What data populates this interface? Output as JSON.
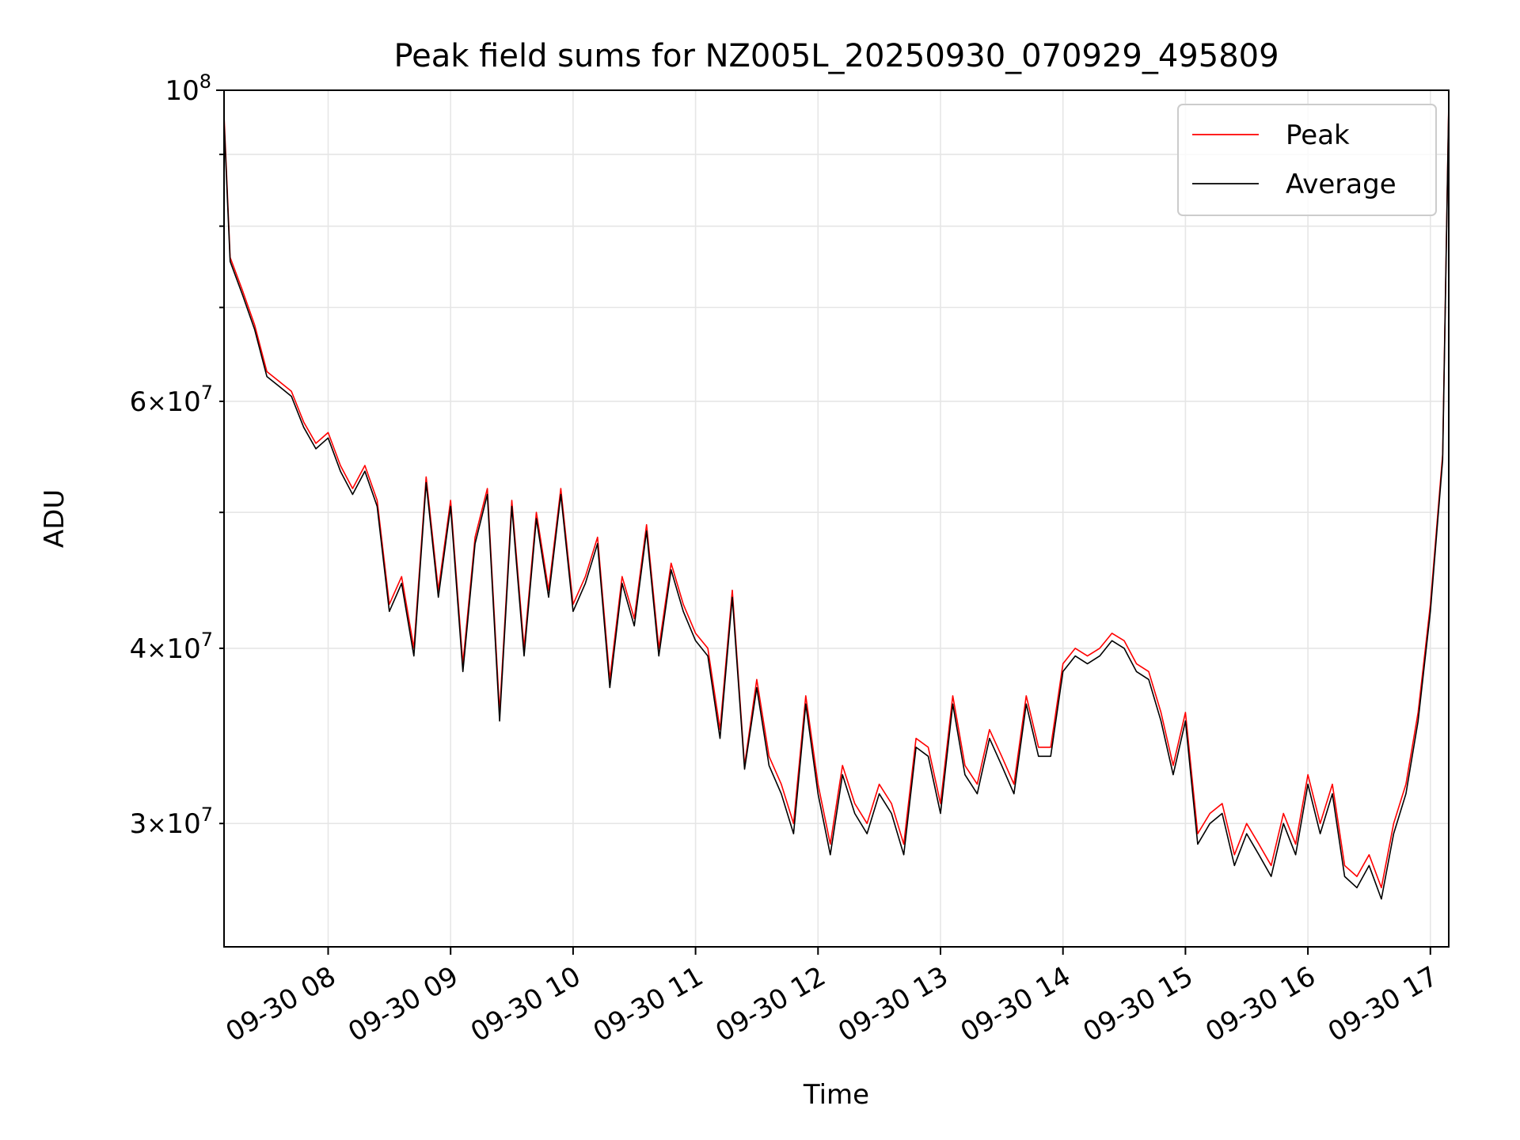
{
  "chart_data": {
    "type": "line",
    "title": "Peak field sums for NZ005L_20250930_070929_495809",
    "xlabel": "Time",
    "ylabel": "ADU",
    "y_scale": "log",
    "xlim_hours": [
      7.15,
      17.15
    ],
    "ylim": [
      24500000,
      100000000
    ],
    "x_ticks": [
      {
        "value": 8,
        "label": "09-30 08"
      },
      {
        "value": 9,
        "label": "09-30 09"
      },
      {
        "value": 10,
        "label": "09-30 10"
      },
      {
        "value": 11,
        "label": "09-30 11"
      },
      {
        "value": 12,
        "label": "09-30 12"
      },
      {
        "value": 13,
        "label": "09-30 13"
      },
      {
        "value": 14,
        "label": "09-30 14"
      },
      {
        "value": 15,
        "label": "09-30 15"
      },
      {
        "value": 16,
        "label": "09-30 16"
      },
      {
        "value": 17,
        "label": "09-30 17"
      }
    ],
    "y_ticks_major": [
      {
        "value": 100000000,
        "base": "10",
        "exp": "8"
      }
    ],
    "y_ticks_minor_labeled": [
      {
        "value": 60000000,
        "mantissa": "6",
        "times": "×",
        "base": "10",
        "exp": "7"
      },
      {
        "value": 40000000,
        "mantissa": "4",
        "times": "×",
        "base": "10",
        "exp": "7"
      },
      {
        "value": 30000000,
        "mantissa": "3",
        "times": "×",
        "base": "10",
        "exp": "7"
      }
    ],
    "y_ticks_minor_unlabeled": [
      50000000,
      70000000,
      80000000,
      90000000
    ],
    "grid": true,
    "legend_position": "top-right",
    "series": [
      {
        "name": "Peak",
        "color": "#ff0000",
        "x_hours": [
          7.15,
          7.2,
          7.3,
          7.4,
          7.5,
          7.6,
          7.7,
          7.8,
          7.9,
          8.0,
          8.1,
          8.2,
          8.3,
          8.4,
          8.5,
          8.6,
          8.7,
          8.8,
          8.9,
          9.0,
          9.1,
          9.2,
          9.3,
          9.4,
          9.5,
          9.6,
          9.7,
          9.8,
          9.9,
          10.0,
          10.1,
          10.2,
          10.3,
          10.4,
          10.5,
          10.6,
          10.7,
          10.8,
          10.9,
          11.0,
          11.1,
          11.2,
          11.3,
          11.4,
          11.5,
          11.6,
          11.7,
          11.8,
          11.9,
          12.0,
          12.1,
          12.2,
          12.3,
          12.4,
          12.5,
          12.6,
          12.7,
          12.8,
          12.9,
          13.0,
          13.1,
          13.2,
          13.3,
          13.4,
          13.5,
          13.6,
          13.7,
          13.8,
          13.9,
          14.0,
          14.1,
          14.2,
          14.3,
          14.4,
          14.5,
          14.6,
          14.7,
          14.8,
          14.9,
          15.0,
          15.1,
          15.2,
          15.3,
          15.4,
          15.5,
          15.6,
          15.7,
          15.8,
          15.9,
          16.0,
          16.1,
          16.2,
          16.3,
          16.4,
          16.5,
          16.6,
          16.7,
          16.8,
          16.9,
          17.0,
          17.1,
          17.15
        ],
        "values": [
          96000000,
          76000000,
          72000000,
          68000000,
          63000000,
          62000000,
          61000000,
          58000000,
          56000000,
          57000000,
          54000000,
          52000000,
          54000000,
          51000000,
          43000000,
          45000000,
          40000000,
          53000000,
          44000000,
          51000000,
          39000000,
          48000000,
          52000000,
          36000000,
          51000000,
          40000000,
          50000000,
          44000000,
          52000000,
          43000000,
          45000000,
          48000000,
          38000000,
          45000000,
          42000000,
          49000000,
          40000000,
          46000000,
          43000000,
          41000000,
          40000000,
          35000000,
          44000000,
          33000000,
          38000000,
          33500000,
          32000000,
          30000000,
          37000000,
          32000000,
          29000000,
          33000000,
          31000000,
          30000000,
          32000000,
          31000000,
          29000000,
          34500000,
          34000000,
          31000000,
          37000000,
          33000000,
          32000000,
          35000000,
          33500000,
          32000000,
          37000000,
          34000000,
          34000000,
          39000000,
          40000000,
          39500000,
          40000000,
          41000000,
          40500000,
          39000000,
          38500000,
          36000000,
          33000000,
          36000000,
          29500000,
          30500000,
          31000000,
          28500000,
          30000000,
          29000000,
          28000000,
          30500000,
          29000000,
          32500000,
          30000000,
          32000000,
          28000000,
          27500000,
          28500000,
          27000000,
          30000000,
          32000000,
          36000000,
          43000000,
          55000000,
          98000000
        ]
      },
      {
        "name": "Average",
        "color": "#000000",
        "x_hours": [
          7.15,
          7.2,
          7.3,
          7.4,
          7.5,
          7.6,
          7.7,
          7.8,
          7.9,
          8.0,
          8.1,
          8.2,
          8.3,
          8.4,
          8.5,
          8.6,
          8.7,
          8.8,
          8.9,
          9.0,
          9.1,
          9.2,
          9.3,
          9.4,
          9.5,
          9.6,
          9.7,
          9.8,
          9.9,
          10.0,
          10.1,
          10.2,
          10.3,
          10.4,
          10.5,
          10.6,
          10.7,
          10.8,
          10.9,
          11.0,
          11.1,
          11.2,
          11.3,
          11.4,
          11.5,
          11.6,
          11.7,
          11.8,
          11.9,
          12.0,
          12.1,
          12.2,
          12.3,
          12.4,
          12.5,
          12.6,
          12.7,
          12.8,
          12.9,
          13.0,
          13.1,
          13.2,
          13.3,
          13.4,
          13.5,
          13.6,
          13.7,
          13.8,
          13.9,
          14.0,
          14.1,
          14.2,
          14.3,
          14.4,
          14.5,
          14.6,
          14.7,
          14.8,
          14.9,
          15.0,
          15.1,
          15.2,
          15.3,
          15.4,
          15.5,
          15.6,
          15.7,
          15.8,
          15.9,
          16.0,
          16.1,
          16.2,
          16.3,
          16.4,
          16.5,
          16.6,
          16.7,
          16.8,
          16.9,
          17.0,
          17.1,
          17.15
        ],
        "values": [
          95000000,
          75500000,
          71500000,
          67500000,
          62500000,
          61500000,
          60500000,
          57500000,
          55500000,
          56500000,
          53500000,
          51500000,
          53500000,
          50500000,
          42500000,
          44500000,
          39500000,
          52500000,
          43500000,
          50500000,
          38500000,
          47500000,
          51500000,
          35500000,
          50500000,
          39500000,
          49500000,
          43500000,
          51500000,
          42500000,
          44500000,
          47500000,
          37500000,
          44500000,
          41500000,
          48500000,
          39500000,
          45500000,
          42500000,
          40500000,
          39500000,
          34500000,
          43500000,
          32800000,
          37500000,
          33000000,
          31500000,
          29500000,
          36500000,
          31500000,
          28500000,
          32500000,
          30500000,
          29500000,
          31500000,
          30500000,
          28500000,
          34000000,
          33500000,
          30500000,
          36500000,
          32500000,
          31500000,
          34500000,
          33000000,
          31500000,
          36500000,
          33500000,
          33500000,
          38500000,
          39500000,
          39000000,
          39500000,
          40500000,
          40000000,
          38500000,
          38000000,
          35500000,
          32500000,
          35500000,
          29000000,
          30000000,
          30500000,
          28000000,
          29500000,
          28500000,
          27500000,
          30000000,
          28500000,
          32000000,
          29500000,
          31500000,
          27500000,
          27000000,
          28000000,
          26500000,
          29500000,
          31500000,
          35500000,
          42500000,
          54500000,
          97500000
        ]
      }
    ]
  }
}
